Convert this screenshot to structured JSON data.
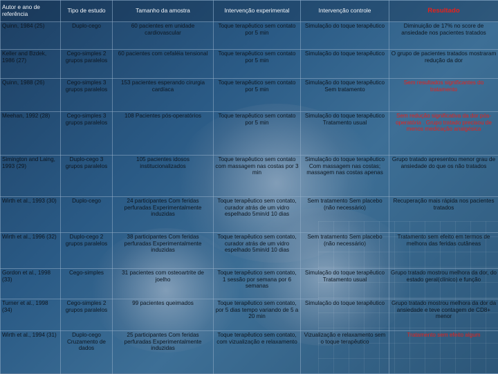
{
  "headers": [
    "Autor e ano de referência",
    "Tipo de estudo",
    "Tamanho da amostra",
    "Intervenção experimental",
    "Intervenção controle",
    "Resultado"
  ],
  "rows": [
    {
      "author": "Quinn, 1984 (25)",
      "type": "Duplo-cego",
      "sample": "60 pacientes em unidade cardiovascular",
      "experimental": "Toque terapêutico sem contato por 5 min",
      "control": "Simulação do toque terapêutico",
      "result": "Diminuição de 17% no score de ansiedade nos pacientes tratados",
      "result_highlight": false
    },
    {
      "author": "Keller and Bzdek, 1986 (27)",
      "type": "Cego-simples 2 grupos paralelos",
      "sample": "60 pacientes com cefaléia tensional",
      "experimental": "Toque terapêutico sem contato por 5 min",
      "control": "Simulação do toque terapêutico",
      "result": "O grupo de pacientes tratados mostraram redução da dor",
      "result_highlight": false
    },
    {
      "author": "Quinn, 1988 (26)",
      "type": "Cego-simples 3 grupos paralelos",
      "sample": "153 pacientes esperando cirurgia cardíaca",
      "experimental": "Toque terapêutico sem contato por 5 min",
      "control": "Simulação do toque terapêutico Sem tratamento",
      "result": "Sem resultados significantes do tratamento",
      "result_highlight": true
    },
    {
      "author": "Meehan, 1992 (28)",
      "type": "Cego-simples 3 grupos paralelos",
      "sample": "108 Pacientes pós-operatórios",
      "experimental": "Toque terapêutico sem contato por 5 min",
      "control": "Simulação do toque terapêutico Tratamento usual",
      "result": "Sem redução significativa da dor pós-operatória . Grupo tratado precisou de menos medicação analgésica",
      "result_highlight": true
    },
    {
      "author": "Simington and Laing, 1993 (29)",
      "type": "Duplo-cego 3 grupos paralelos",
      "sample": "105 pacientes idosos institucionalizados",
      "experimental": "Toque terapêutico sem contato com massagem nas costas por 3 min",
      "control": "Simulação do toque terapêutico Com massagem nas costas; massagem nas costas apenas",
      "result": "Grupo tratado apresentou menor grau de ansiedade do que os não tratados",
      "result_highlight": false
    },
    {
      "author": "Wirth et al., 1993 (30)",
      "type": "Duplo-cego",
      "sample": "24 participantes Com feridas perfuradas Experimentalmente induzidas",
      "experimental": "Toque terapêutico sem contato, curador atrás de um vidro espelhado 5min/d 10 dias",
      "control": "Sem tratamento Sem placebo (não necessário)",
      "result": "Recuperação mais rápida nos pacientes tratados",
      "result_highlight": false
    },
    {
      "author": "Wirth et al., 1996 (32)",
      "type": "Duplo-cego 2 grupos paralelos",
      "sample": "38 participantes Com feridas perfuradas Experimentalmente induzidas",
      "experimental": "Toque terapêutico sem contato, curador atrás de um vidro espelhado 5min/d 10 dias",
      "control": "Sem tratamento Sem placebo (não necessário)",
      "result": "Tratamento sem efeito em termos de melhora das feridas cutâneas",
      "result_highlight": false
    },
    {
      "author": "Gordon et al., 1998 (33)",
      "type": "Cego-simples",
      "sample": "31 pacientes com osteoartrite de joelho",
      "experimental": "Toque terapêutico sem contato, 1 sessão por semana por 6 semanas",
      "control": "Simulação do toque terapêutico Tratamento usual",
      "result": "Grupo tratado mostrou melhora da dor, do estado geral(clínico) e função",
      "result_highlight": false
    },
    {
      "author": "Turner et al., 1998 (34)",
      "type": "Cego-simples 2 grupos paralelos",
      "sample": "99 pacientes queimados",
      "experimental": "Toque terapêutico sem contato, por 5 dias tempo variando de 5 a 20 min",
      "control": "Simulação do toque terapêutico",
      "result": "Grupo tratado mostrou melhora da dor da ansiedade e teve contagem de CD8+ menor",
      "result_highlight": false
    },
    {
      "author": "Wirth et al., 1994 (31)",
      "type": "Duplo-cego Cruzamento de dados",
      "sample": "25 participantes Com feridas perfuradas Experimentalmente induzidas",
      "experimental": "Toque terapêutico sem contato, com vizualização e relaxamento",
      "control": "Vizualização e relaxamento sem o toque terapêutico",
      "result": "Tratamento sem efeito algum",
      "result_highlight": true
    }
  ],
  "colors": {
    "result_header": "#e8201a",
    "highlight_text": "#e8201a",
    "body_text": "#0d1620",
    "header_text": "#f3f6fa"
  }
}
